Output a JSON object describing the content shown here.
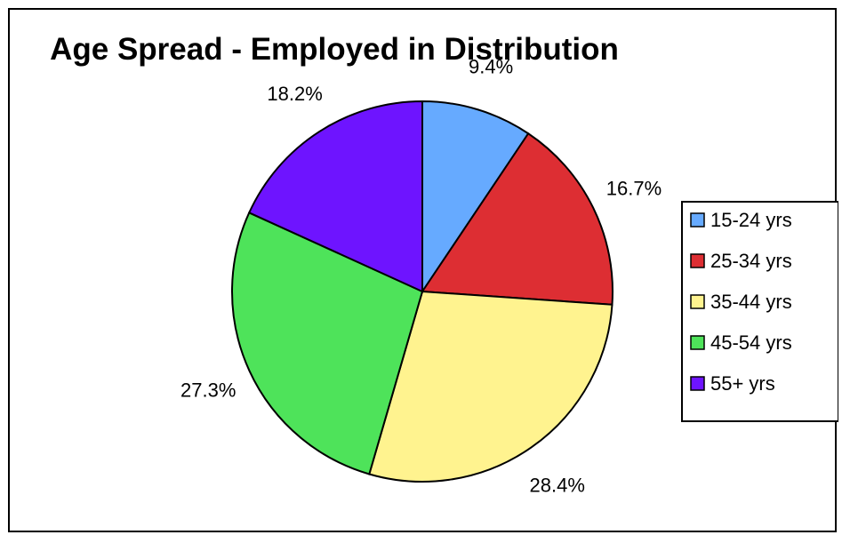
{
  "chart_data": {
    "type": "pie",
    "title": "Age Spread - Employed in Distribution",
    "categories": [
      "15-24 yrs",
      "25-34 yrs",
      "35-44 yrs",
      "45-54 yrs",
      "55+ yrs"
    ],
    "values": [
      9.4,
      16.7,
      28.4,
      27.3,
      18.2
    ],
    "labels": [
      "9.4%",
      "16.7%",
      "28.4%",
      "27.3%",
      "18.2%"
    ],
    "colors": [
      "#66AAFF",
      "#DD2E33",
      "#FFF38F",
      "#4EE35A",
      "#6E14FF"
    ],
    "start_angle_deg": 0,
    "direction": "clockwise",
    "legend": {
      "position": "right"
    }
  }
}
